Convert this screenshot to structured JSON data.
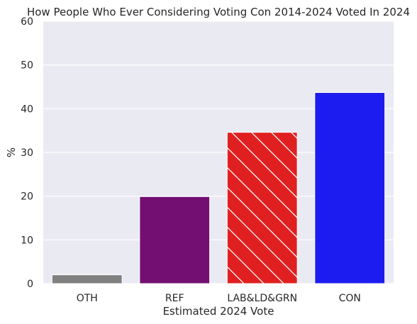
{
  "chart_data": {
    "type": "bar",
    "title": "How People Who Ever Considering Voting Con 2014-2024 Voted In 2024",
    "xlabel": "Estimated 2024 Vote",
    "ylabel": "%",
    "ylim": [
      0,
      60
    ],
    "yticks": [
      "0",
      "10",
      "20",
      "30",
      "40",
      "50",
      "60"
    ],
    "grid": true,
    "categories": [
      "OTH",
      "REF",
      "LAB&LD&GRN",
      "CON"
    ],
    "values": [
      2.0,
      19.9,
      34.6,
      43.7
    ],
    "colors": [
      "#808080",
      "#730f73",
      "#e02020",
      "#1c1cf0"
    ],
    "hatched": [
      false,
      false,
      true,
      false
    ]
  }
}
